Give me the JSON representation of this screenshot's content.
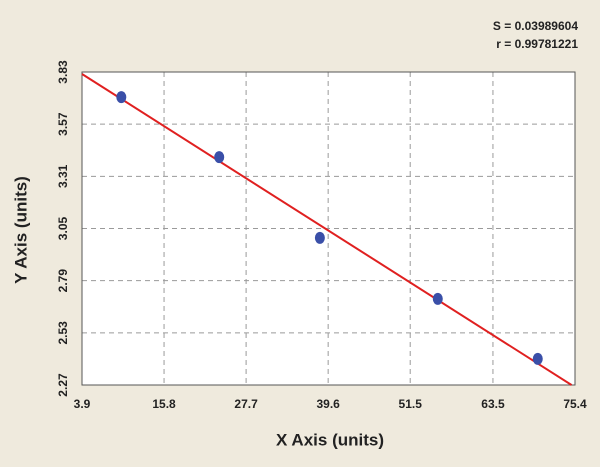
{
  "chart_data": {
    "type": "scatter",
    "annotations": [
      "S = 0.03989604",
      "r = 0.99781221"
    ],
    "x_label": "X Axis (units)",
    "y_label": "Y Axis (units)",
    "series": [
      {
        "color": "#3a4fa8",
        "x": [
          9.6,
          23.8,
          38.4,
          55.5,
          70.0
        ],
        "values": [
          3.705,
          3.406,
          3.003,
          2.699,
          2.4
        ]
      }
    ],
    "fit": {
      "color": "#e02020",
      "x": [
        3.9,
        74.9
      ],
      "values": [
        3.82,
        2.27
      ]
    },
    "xlim": [
      3.9,
      75.4
    ],
    "xticks": [
      3.9,
      15.8,
      27.7,
      39.6,
      51.5,
      63.5,
      75.4
    ],
    "ylim": [
      2.27,
      3.83
    ],
    "yticks": [
      2.27,
      2.53,
      2.79,
      3.05,
      3.31,
      3.57,
      3.83
    ],
    "grid": true
  }
}
